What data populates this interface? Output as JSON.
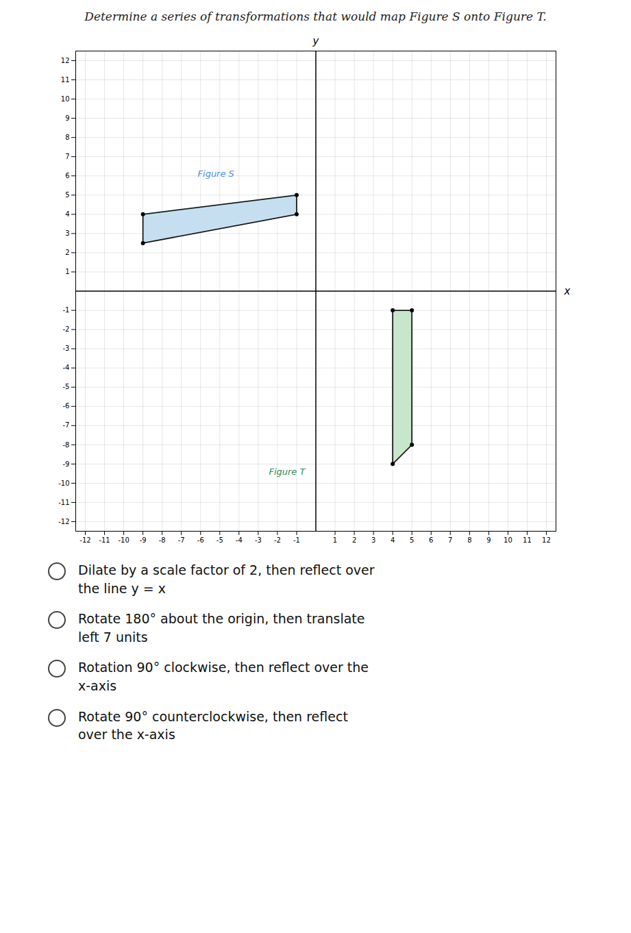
{
  "chart_data": {
    "type": "polygon",
    "title": "Determine a series of transformations that would map Figure S onto Figure T.",
    "x_label": "x",
    "y_label": "y",
    "series": [
      {
        "name": "Figure S",
        "color": "#c5dff0",
        "values": [
          [
            -9,
            2.5
          ],
          [
            -9,
            4
          ],
          [
            -1,
            5
          ],
          [
            -1,
            4
          ]
        ]
      },
      {
        "name": "Figure T",
        "color": "#c8e6c9",
        "values": [
          [
            4,
            -1
          ],
          [
            5,
            -1
          ],
          [
            5,
            -8
          ],
          [
            4,
            -9
          ]
        ]
      }
    ],
    "annotations": [
      {
        "text": "Figure S",
        "x": -5.2,
        "y": 6.1,
        "color": "#4a90d9"
      },
      {
        "text": "Figure T",
        "x": -1.5,
        "y": -9.4,
        "color": "#2e8b57"
      }
    ],
    "xlim": [
      -12.5,
      12.5
    ],
    "ylim": [
      -12.5,
      12.5
    ],
    "xticks": [
      -12,
      -11,
      -10,
      -9,
      -8,
      -7,
      -6,
      -5,
      -4,
      -3,
      -2,
      -1,
      1,
      2,
      3,
      4,
      5,
      6,
      7,
      8,
      9,
      10,
      11,
      12
    ],
    "yticks": [
      -12,
      -11,
      -10,
      -9,
      -8,
      -7,
      -6,
      -5,
      -4,
      -3,
      -2,
      -1,
      1,
      2,
      3,
      4,
      5,
      6,
      7,
      8,
      9,
      10,
      11,
      12
    ],
    "grid": true,
    "answer_options": [
      [
        "Dilate by a scale factor of 2, then reflect over",
        "the line y = x"
      ],
      [
        "Rotate 180° about the origin, then translate",
        "left 7 units"
      ],
      [
        "Rotation 90° clockwise, then reflect over the",
        "x-axis"
      ],
      [
        "Rotate 90° counterclockwise, then reflect",
        "over the x-axis"
      ]
    ]
  }
}
